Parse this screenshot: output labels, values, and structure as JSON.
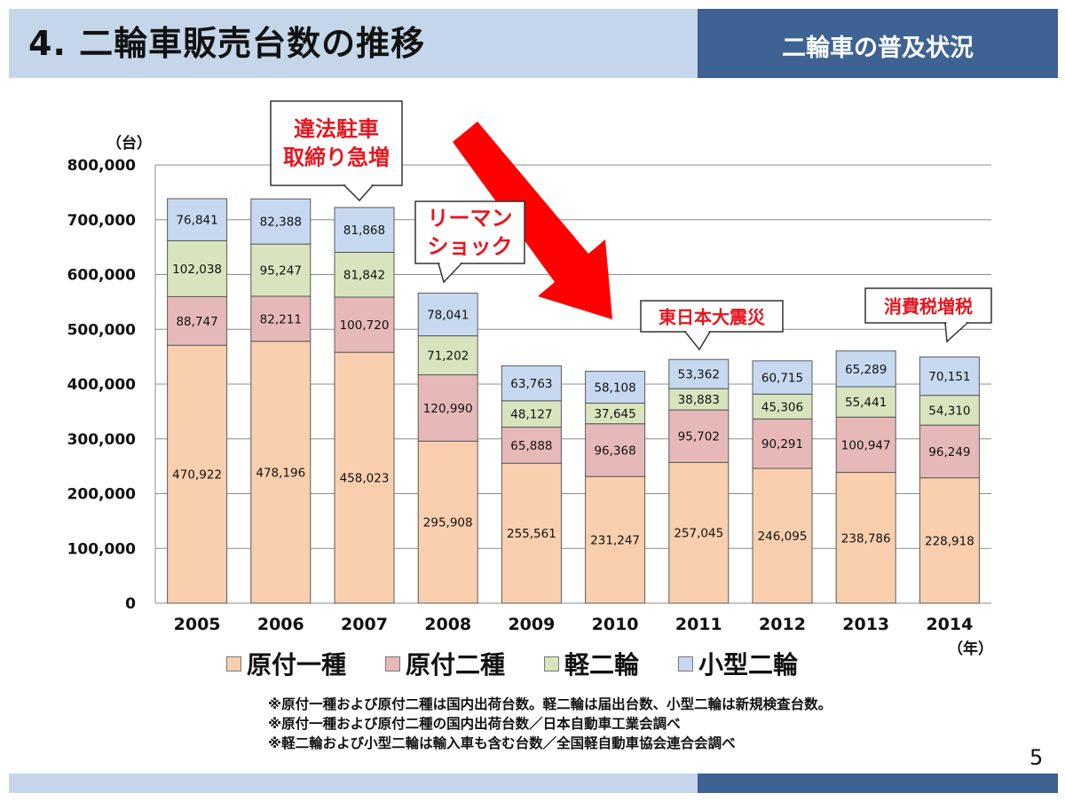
{
  "header": {
    "title": "4. 二輪車販売台数の推移",
    "subtitle": "二輪車の普及状況"
  },
  "page_number": "5",
  "colors": {
    "header_light": "#c5d5ea",
    "header_dark": "#3d6293",
    "arrow": "#ff0000",
    "callout_text": "#e8141d"
  },
  "chart_data": {
    "type": "bar",
    "stacked": true,
    "categories": [
      "2005",
      "2006",
      "2007",
      "2008",
      "2009",
      "2010",
      "2011",
      "2012",
      "2013",
      "2014"
    ],
    "series": [
      {
        "name": "原付一種",
        "color": "#f9cfae",
        "values": [
          470922,
          478196,
          458023,
          295908,
          255561,
          231247,
          257045,
          246095,
          238786,
          228918
        ]
      },
      {
        "name": "原付二種",
        "color": "#e6b9b8",
        "values": [
          88747,
          82211,
          100720,
          120990,
          65888,
          96368,
          95702,
          90291,
          100947,
          96249
        ]
      },
      {
        "name": "軽二輪",
        "color": "#d7e4bd",
        "values": [
          102038,
          95247,
          81842,
          71202,
          48127,
          37645,
          38883,
          45306,
          55441,
          54310
        ]
      },
      {
        "name": "小型二輪",
        "color": "#c6d9f1",
        "values": [
          76841,
          82388,
          81868,
          78041,
          63763,
          58108,
          53362,
          60715,
          65289,
          70151
        ]
      }
    ],
    "value_labels": [
      [
        "470,922",
        "478,196",
        "458,023",
        "295,908",
        "255,561",
        "231,247",
        "257,045",
        "246,095",
        "238,786",
        "228,918"
      ],
      [
        "88,747",
        "82,211",
        "100,720",
        "120,990",
        "65,888",
        "96,368",
        "95,702",
        "90,291",
        "100,947",
        "96,249"
      ],
      [
        "102,038",
        "95,247",
        "81,842",
        "71,202",
        "48,127",
        "37,645",
        "38,883",
        "45,306",
        "55,441",
        "54,310"
      ],
      [
        "76,841",
        "82,388",
        "81,868",
        "78,041",
        "63,763",
        "58,108",
        "53,362",
        "60,715",
        "65,289",
        "70,151"
      ]
    ],
    "ylim": [
      0,
      800000
    ],
    "yticks": [
      0,
      100000,
      200000,
      300000,
      400000,
      500000,
      600000,
      700000,
      800000
    ],
    "ytick_labels": [
      "0",
      "100,000",
      "200,000",
      "300,000",
      "400,000",
      "500,000",
      "600,000",
      "700,000",
      "800,000"
    ],
    "ylabel": "（台）",
    "xlabel": "（年）",
    "grid": true,
    "legend_position": "bottom",
    "annotations": [
      {
        "category": "2007",
        "lines": [
          "違法駐車",
          "取締り急増"
        ]
      },
      {
        "category": "2008",
        "lines": [
          "リーマン",
          "ショック"
        ]
      },
      {
        "category": "2011",
        "lines": [
          "東日本大震災"
        ]
      },
      {
        "category": "2014",
        "lines": [
          "消費税増税"
        ]
      }
    ]
  },
  "notes": [
    "※原付一種および原付二種は国内出荷台数。軽二輪は届出台数、小型二輪は新規検査台数。",
    "※原付一種および原付二種の国内出荷台数／日本自動車工業会調べ",
    "※軽二輪および小型二輪は輸入車も含む台数／全国軽自動車協会連合会調べ"
  ]
}
